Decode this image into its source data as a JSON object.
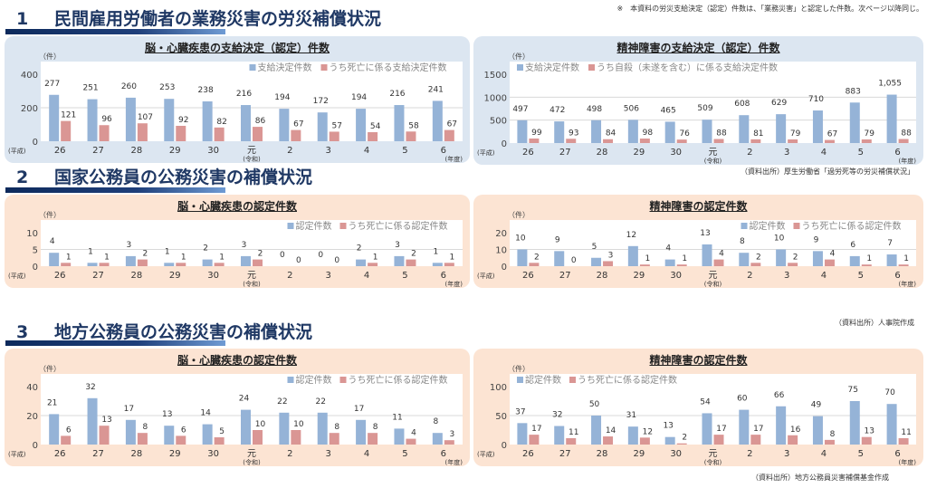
{
  "note": "※　本資料の労災支給決定（認定）件数は、「業務災害」と認定した件数。次ページ以降同じ。",
  "sections": [
    {
      "num": "1",
      "title": "民間雇用労働者の業務災害の労災補償状況",
      "source": "（資料出所）厚生労働省「過労死等の労災補償状況」"
    },
    {
      "num": "2",
      "title": "国家公務員の公務災害の補償状況",
      "source": "（資料出所）人事院作成"
    },
    {
      "num": "3",
      "title": "地方公務員の公務災害の補償状況",
      "source": "（資料出所）地方公務員災害補償基金作成"
    }
  ],
  "colors": {
    "series1": "#95b3d7",
    "series2": "#da9694",
    "panel_blue": "#dce6f1",
    "panel_orange": "#fce4d3",
    "heading": "#1f3864"
  },
  "axis_labels": {
    "unit": "（件）",
    "era1": "(平成)",
    "era2": "(令和)",
    "year": "(年度)"
  },
  "chart_data": [
    {
      "type": "bar",
      "title": "脳・心臓疾患の支給決定（認定）件数",
      "categories": [
        "26",
        "27",
        "28",
        "29",
        "30",
        "元",
        "2",
        "3",
        "4",
        "5",
        "6"
      ],
      "ylim": [
        0,
        400
      ],
      "yticks": [
        0,
        200,
        400
      ],
      "grid": true,
      "legend": "top-right",
      "series": [
        {
          "name": "支給決定件数",
          "values": [
            277,
            251,
            260,
            253,
            238,
            216,
            194,
            172,
            194,
            216,
            241
          ]
        },
        {
          "name": "うち死亡に係る支給決定件数",
          "values": [
            121,
            96,
            107,
            92,
            82,
            86,
            67,
            57,
            54,
            58,
            67
          ]
        }
      ]
    },
    {
      "type": "bar",
      "title": "精神障害の支給決定（認定）件数",
      "categories": [
        "26",
        "27",
        "28",
        "29",
        "30",
        "元",
        "2",
        "3",
        "4",
        "5",
        "6"
      ],
      "ylim": [
        0,
        1500
      ],
      "yticks": [
        0,
        500,
        1000,
        1500
      ],
      "grid": true,
      "legend": "top-left",
      "series": [
        {
          "name": "支給決定件数",
          "values": [
            497,
            472,
            498,
            506,
            465,
            509,
            608,
            629,
            710,
            883,
            1055
          ],
          "labels": [
            "497",
            "472",
            "498",
            "506",
            "465",
            "509",
            "608",
            "629",
            "710",
            "883",
            "1,055"
          ]
        },
        {
          "name": "うち自殺（未遂を含む）に係る支給決定件数",
          "values": [
            99,
            93,
            84,
            98,
            76,
            88,
            81,
            79,
            67,
            79,
            88
          ]
        }
      ]
    },
    {
      "type": "bar",
      "title": "脳・心臓疾患の認定件数",
      "categories": [
        "26",
        "27",
        "28",
        "29",
        "30",
        "元",
        "2",
        "3",
        "4",
        "5",
        "6"
      ],
      "ylim": [
        0,
        10
      ],
      "yticks": [
        0,
        5,
        10
      ],
      "grid": true,
      "legend": "top-right",
      "series": [
        {
          "name": "認定件数",
          "values": [
            4,
            1,
            3,
            1,
            2,
            3,
            0,
            0,
            2,
            3,
            1
          ]
        },
        {
          "name": "うち死亡に係る認定件数",
          "values": [
            1,
            1,
            2,
            1,
            1,
            2,
            0,
            0,
            1,
            2,
            1
          ]
        }
      ]
    },
    {
      "type": "bar",
      "title": "精神障害の認定件数",
      "categories": [
        "26",
        "27",
        "28",
        "29",
        "30",
        "元",
        "2",
        "3",
        "4",
        "5",
        "6"
      ],
      "ylim": [
        0,
        20
      ],
      "yticks": [
        0,
        10,
        20
      ],
      "grid": true,
      "legend": "top-right",
      "series": [
        {
          "name": "認定件数",
          "values": [
            10,
            9,
            5,
            12,
            4,
            13,
            8,
            10,
            9,
            6,
            7
          ]
        },
        {
          "name": "うち死亡に係る認定件数",
          "values": [
            2,
            0,
            3,
            1,
            1,
            4,
            2,
            2,
            4,
            1,
            1
          ]
        }
      ]
    },
    {
      "type": "bar",
      "title": "脳・心臓疾患の認定件数",
      "categories": [
        "26",
        "27",
        "28",
        "29",
        "30",
        "元",
        "2",
        "3",
        "4",
        "5",
        "6"
      ],
      "ylim": [
        0,
        40
      ],
      "yticks": [
        0,
        20,
        40
      ],
      "grid": true,
      "legend": "top-right",
      "series": [
        {
          "name": "認定件数",
          "values": [
            21,
            32,
            17,
            13,
            14,
            24,
            22,
            22,
            17,
            11,
            8
          ]
        },
        {
          "name": "うち死亡に係る認定件数",
          "values": [
            6,
            13,
            8,
            6,
            5,
            10,
            10,
            8,
            8,
            4,
            3
          ]
        }
      ]
    },
    {
      "type": "bar",
      "title": "精神障害の認定件数",
      "categories": [
        "26",
        "27",
        "28",
        "29",
        "30",
        "元",
        "2",
        "3",
        "4",
        "5",
        "6"
      ],
      "ylim": [
        0,
        100
      ],
      "yticks": [
        0,
        50,
        100
      ],
      "grid": true,
      "legend": "top-left",
      "series": [
        {
          "name": "認定件数",
          "values": [
            37,
            32,
            50,
            31,
            13,
            54,
            60,
            66,
            49,
            75,
            70
          ]
        },
        {
          "name": "うち死亡に係る認定件数",
          "values": [
            17,
            11,
            14,
            12,
            2,
            17,
            17,
            16,
            8,
            13,
            11
          ]
        }
      ]
    }
  ]
}
